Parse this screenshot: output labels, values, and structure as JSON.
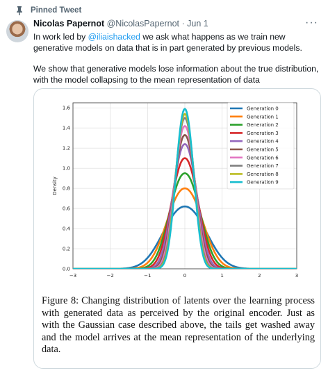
{
  "pinned": {
    "label": "Pinned Tweet"
  },
  "tweet": {
    "author_name": "Nicolas Papernot",
    "author_handle": "@NicolasPapernot",
    "separator": "·",
    "date": "Jun 1",
    "text_prefix": "In work led by ",
    "mention": "@iliaishacked",
    "text_suffix": " we ask what happens as we train new generative models on data that is in part generated by previous models.",
    "paragraph2": "We show that generative models lose information about the true distribution, with the model collapsing to the mean representation of data"
  },
  "more_icon": "more-horizontal-icon",
  "figure": {
    "caption_label": "Figure 8:",
    "caption_text": "Changing distribution of latents over the learning process with generated data as perceived by the original encoder. Just as with the Gaussian case described above, the tails get washed away and the model arrives at the mean representation of the underlying data."
  },
  "chart_data": {
    "type": "line",
    "title": "",
    "xlabel": "",
    "ylabel": "Density",
    "xlim": [
      -3,
      3
    ],
    "ylim": [
      0,
      1.65
    ],
    "xticks": [
      -3,
      -2,
      -1,
      0,
      1,
      2,
      3
    ],
    "yticks": [
      0.0,
      0.2,
      0.4,
      0.6,
      0.8,
      1.0,
      1.2,
      1.4,
      1.6
    ],
    "grid": true,
    "legend_position": "top-right",
    "series": [
      {
        "name": "Generation 0",
        "color": "#1f77b4",
        "peak": 0.62,
        "sigma": 0.6
      },
      {
        "name": "Generation 1",
        "color": "#ff7f0e",
        "peak": 0.8,
        "sigma": 0.5
      },
      {
        "name": "Generation 2",
        "color": "#2ca02c",
        "peak": 0.95,
        "sigma": 0.43
      },
      {
        "name": "Generation 3",
        "color": "#d62728",
        "peak": 1.1,
        "sigma": 0.38
      },
      {
        "name": "Generation 4",
        "color": "#9467bd",
        "peak": 1.24,
        "sigma": 0.34
      },
      {
        "name": "Generation 5",
        "color": "#8c564b",
        "peak": 1.33,
        "sigma": 0.31
      },
      {
        "name": "Generation 6",
        "color": "#e377c2",
        "peak": 1.42,
        "sigma": 0.29
      },
      {
        "name": "Generation 7",
        "color": "#7f7f7f",
        "peak": 1.5,
        "sigma": 0.27
      },
      {
        "name": "Generation 8",
        "color": "#bcbd22",
        "peak": 1.54,
        "sigma": 0.26
      },
      {
        "name": "Generation 9",
        "color": "#17becf",
        "peak": 1.59,
        "sigma": 0.25
      }
    ]
  }
}
